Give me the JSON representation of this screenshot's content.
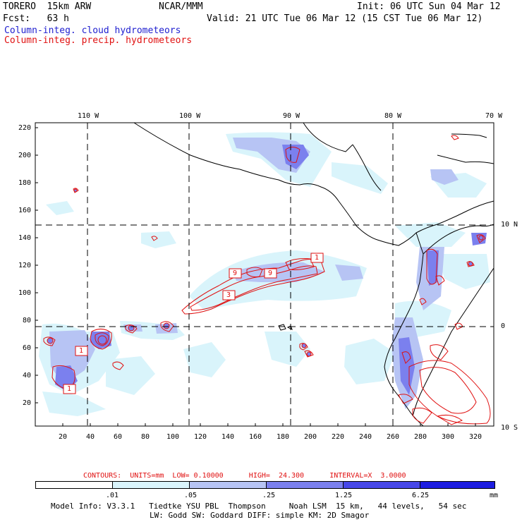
{
  "header": {
    "model": "TORERO  15km ARW",
    "center": "NCAR/MMM",
    "init": "Init: 06 UTC Sun 04 Mar 12",
    "fcst": "Fcst:   63 h",
    "valid": "Valid: 21 UTC Tue 06 Mar 12 (15 CST Tue 06 Mar 12)",
    "legend_cloud": "Column-integ. cloud hydrometeors",
    "legend_precip": "Column-integ. precip. hydrometeors"
  },
  "map": {
    "lon_labels": [
      "110 W",
      "100 W",
      "90 W",
      "80 W",
      "70 W"
    ],
    "lat_labels": [
      "10 N",
      "0",
      "10 S"
    ],
    "y_ticks": [
      "220",
      "200",
      "180",
      "160",
      "140",
      "120",
      "100",
      "80",
      "60",
      "40",
      "20"
    ],
    "x_ticks": [
      "20",
      "40",
      "60",
      "80",
      "100",
      "120",
      "140",
      "160",
      "180",
      "200",
      "220",
      "240",
      "260",
      "280",
      "300",
      "320"
    ],
    "contour_labels": [
      "1",
      "9",
      "9",
      "3",
      "1",
      "1"
    ]
  },
  "contour_info": {
    "text": "CONTOURS:  UNITS=mm  LOW= 0.10000      HIGH=  24.300      INTERVAL=X  3.0000"
  },
  "colorbar": {
    "labels": [
      ".01",
      ".05",
      ".25",
      "1.25",
      "6.25"
    ],
    "unit": "mm",
    "colors": [
      "#ffffff",
      "#d9f4fb",
      "#b7c4f4",
      "#7b80ee",
      "#4747e8",
      "#1d1de0"
    ]
  },
  "model_info": {
    "line1": "Model Info: V3.3.1   Tiedtke YSU PBL  Thompson     Noah LSM  15 km,   44 levels,   54 sec",
    "line2": "LW: Godd SW: Goddard DIFF: simple KM: 2D Smagor"
  }
}
